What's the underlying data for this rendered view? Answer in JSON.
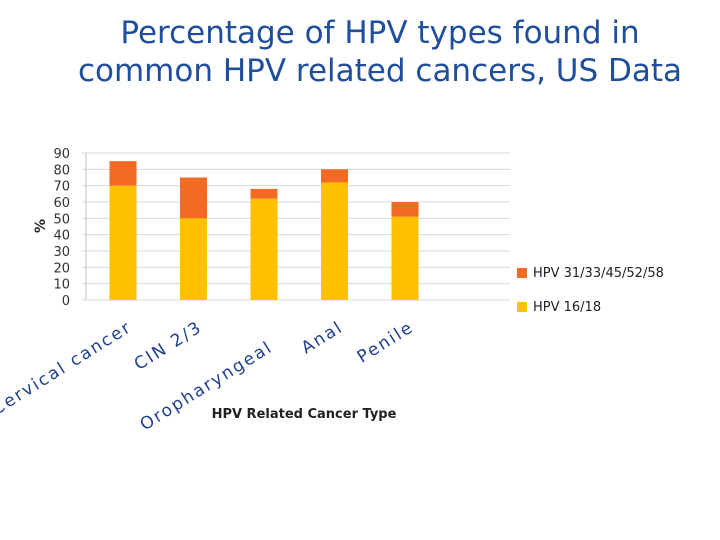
{
  "chart_data": {
    "type": "bar",
    "stacked": true,
    "title": "Percentage of HPV types found in common HPV related cancers,  US Data",
    "title_lines": [
      "Percentage of HPV types found in",
      "common HPV related cancers,  US Data"
    ],
    "categories": [
      "Cervical cancer",
      "CIN 2/3",
      "Oropharyngeal",
      "Anal",
      "Penile"
    ],
    "series": [
      {
        "name": "HPV 16/18",
        "color": "#ffc000",
        "values": [
          70,
          50,
          62,
          72,
          51
        ]
      },
      {
        "name": "HPV 31/33/45/52/58",
        "color": "#f36a22",
        "values": [
          15,
          25,
          6,
          8,
          9
        ]
      }
    ],
    "xlabel": "HPV Related Cancer Type",
    "ylabel": "%",
    "ylim": [
      0,
      90
    ],
    "yticks": [
      0,
      10,
      20,
      30,
      40,
      50,
      60,
      70,
      80,
      90
    ],
    "legend_order": [
      "HPV 31/33/45/52/58",
      "HPV 16/18"
    ],
    "grid": true,
    "legend_position": "right"
  }
}
